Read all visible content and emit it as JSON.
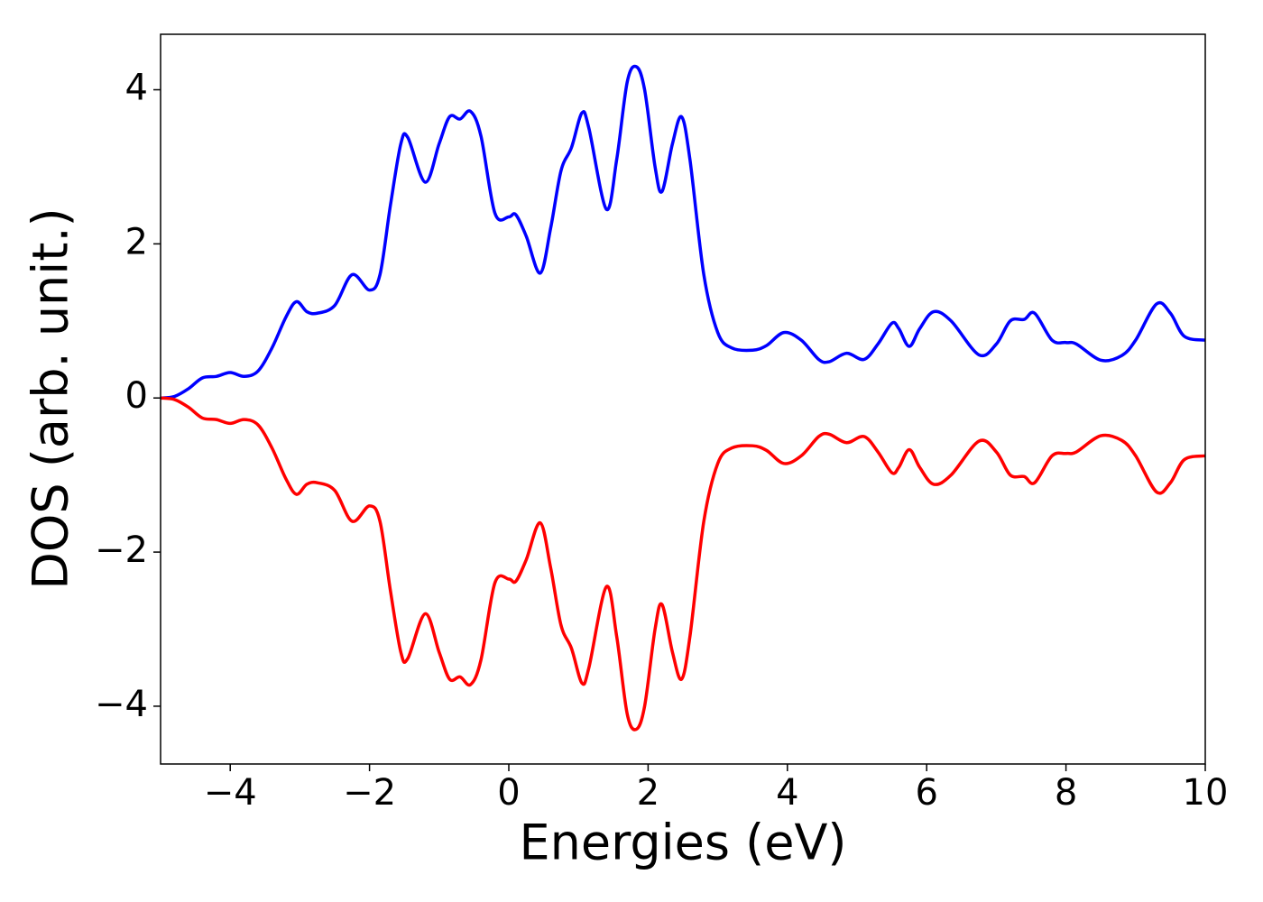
{
  "chart_data": {
    "type": "line",
    "x_label": "Energies (eV)",
    "y_label": "DOS (arb. unit.)",
    "x": [
      -5,
      -4.8,
      -4.6,
      -4.4,
      -4.2,
      -4.0,
      -3.8,
      -3.6,
      -3.4,
      -3.2,
      -3.05,
      -2.9,
      -2.75,
      -2.5,
      -2.25,
      -2.0,
      -1.85,
      -1.7,
      -1.55,
      -1.45,
      -1.2,
      -1.0,
      -0.85,
      -0.7,
      -0.55,
      -0.4,
      -0.2,
      0.0,
      0.1,
      0.25,
      0.45,
      0.6,
      0.75,
      0.9,
      1.05,
      1.15,
      1.4,
      1.55,
      1.7,
      1.83,
      1.95,
      2.1,
      2.2,
      2.35,
      2.48,
      2.6,
      2.8,
      3.0,
      3.2,
      3.5,
      3.7,
      3.95,
      4.2,
      4.45,
      4.6,
      4.85,
      5.1,
      5.3,
      5.5,
      5.6,
      5.75,
      5.9,
      6.1,
      6.35,
      6.75,
      7.0,
      7.2,
      7.4,
      7.55,
      7.8,
      8.0,
      8.15,
      8.5,
      8.8,
      9.0,
      9.3,
      9.5,
      9.7,
      10
    ],
    "series": [
      {
        "color": "#0000ff",
        "values": [
          0,
          0.02,
          0.12,
          0.26,
          0.28,
          0.33,
          0.28,
          0.35,
          0.65,
          1.05,
          1.25,
          1.12,
          1.1,
          1.2,
          1.6,
          1.4,
          1.6,
          2.5,
          3.3,
          3.38,
          2.8,
          3.3,
          3.65,
          3.62,
          3.72,
          3.4,
          2.4,
          2.35,
          2.38,
          2.1,
          1.62,
          2.2,
          2.95,
          3.25,
          3.7,
          3.5,
          2.45,
          3.1,
          4.1,
          4.3,
          4.0,
          3.0,
          2.68,
          3.3,
          3.65,
          3.1,
          1.6,
          0.85,
          0.65,
          0.62,
          0.68,
          0.85,
          0.75,
          0.5,
          0.47,
          0.58,
          0.5,
          0.7,
          0.97,
          0.9,
          0.67,
          0.9,
          1.12,
          1.0,
          0.56,
          0.7,
          1.0,
          1.02,
          1.1,
          0.75,
          0.72,
          0.7,
          0.49,
          0.55,
          0.75,
          1.22,
          1.1,
          0.8,
          0.75
        ]
      },
      {
        "color": "#ff0000",
        "values": [
          0,
          -0.02,
          -0.12,
          -0.26,
          -0.28,
          -0.33,
          -0.28,
          -0.35,
          -0.65,
          -1.05,
          -1.25,
          -1.12,
          -1.1,
          -1.2,
          -1.6,
          -1.4,
          -1.6,
          -2.5,
          -3.3,
          -3.38,
          -2.8,
          -3.3,
          -3.65,
          -3.62,
          -3.72,
          -3.4,
          -2.4,
          -2.35,
          -2.38,
          -2.1,
          -1.62,
          -2.2,
          -2.95,
          -3.25,
          -3.7,
          -3.5,
          -2.45,
          -3.1,
          -4.1,
          -4.3,
          -4.0,
          -3.0,
          -2.68,
          -3.3,
          -3.65,
          -3.1,
          -1.6,
          -0.85,
          -0.65,
          -0.62,
          -0.68,
          -0.85,
          -0.75,
          -0.5,
          -0.47,
          -0.58,
          -0.5,
          -0.7,
          -0.97,
          -0.9,
          -0.67,
          -0.9,
          -1.12,
          -1.0,
          -0.56,
          -0.7,
          -1.0,
          -1.02,
          -1.1,
          -0.75,
          -0.72,
          -0.7,
          -0.49,
          -0.55,
          -0.75,
          -1.22,
          -1.1,
          -0.8,
          -0.75
        ]
      }
    ],
    "xlim": [
      -5,
      10
    ],
    "ylim": [
      -4.75,
      4.72
    ],
    "xticks": [
      {
        "value": -4,
        "label": "−4"
      },
      {
        "value": -2,
        "label": "−2"
      },
      0,
      2,
      4,
      6,
      8,
      10
    ],
    "yticks": [
      {
        "value": -4,
        "label": "−4"
      },
      {
        "value": -2,
        "label": "−2"
      },
      0,
      2,
      4
    ],
    "grid": false
  }
}
